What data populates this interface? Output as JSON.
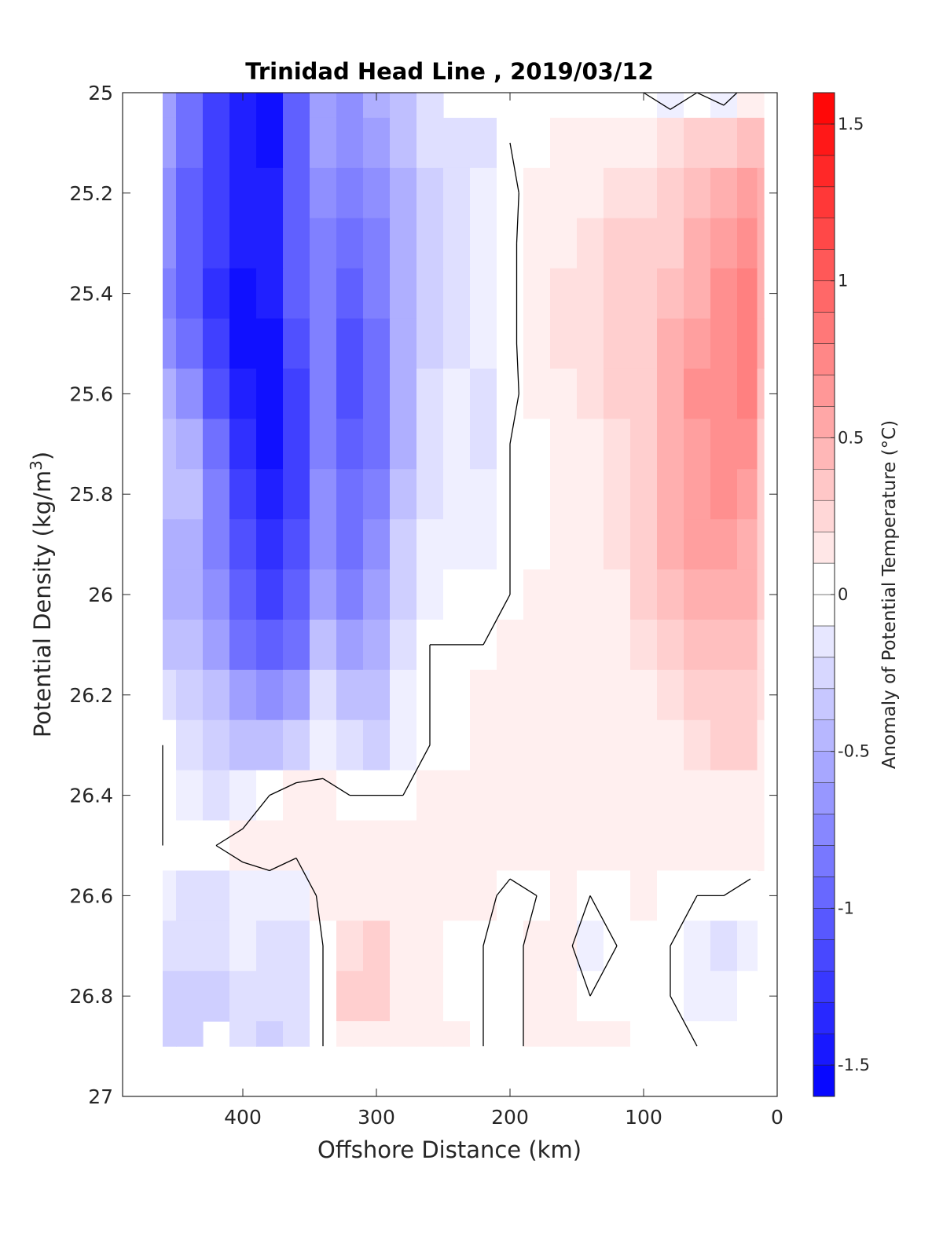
{
  "chart_data": {
    "type": "heatmap",
    "title": "Trinidad Head Line , 2019/03/12",
    "xlabel": "Offshore Distance (km)",
    "ylabel_main": "Potential Density (kg/m",
    "ylabel_sup": "3",
    "ylabel_close": ")",
    "colorbar_label": "Anomaly of Potential Temperature (°C)",
    "x_reversed": true,
    "xlim": [
      0,
      490
    ],
    "ylim": [
      25,
      27
    ],
    "y_reversed": true,
    "xticks": [
      400,
      300,
      200,
      100,
      0
    ],
    "xtick_labels": [
      "400",
      "300",
      "200",
      "100",
      "0"
    ],
    "yticks": [
      25,
      25.2,
      25.4,
      25.6,
      25.8,
      26,
      26.2,
      26.4,
      26.6,
      26.8,
      27
    ],
    "ytick_labels": [
      "25",
      "25.2",
      "25.4",
      "25.6",
      "25.8",
      "26",
      "26.2",
      "26.4",
      "26.6",
      "26.8",
      "27"
    ],
    "colorbar": {
      "min": -1.6,
      "max": 1.6,
      "step": 0.1,
      "ticks": [
        -1.5,
        -1,
        -0.5,
        0,
        0.5,
        1,
        1.5
      ],
      "tick_labels": [
        "-1.5",
        "-1",
        "-0.5",
        "0",
        "0.5",
        "1",
        "1.5"
      ],
      "cold_color": "#0000ff",
      "warm_color": "#ff0000",
      "neutral_color": "#ffffff"
    },
    "x_grid_km": [
      460,
      440,
      420,
      400,
      380,
      360,
      340,
      320,
      300,
      280,
      260,
      240,
      220,
      200,
      180,
      160,
      140,
      120,
      100,
      80,
      60,
      40,
      20,
      10
    ],
    "y_grid_density": [
      25.0,
      25.1,
      25.2,
      25.3,
      25.4,
      25.5,
      25.6,
      25.7,
      25.8,
      25.9,
      26.0,
      26.1,
      26.2,
      26.3,
      26.4,
      26.5,
      26.6,
      26.7,
      26.8,
      26.9
    ],
    "anomaly_values": [
      [
        -0.6,
        -0.9,
        -1.2,
        -1.4,
        -1.55,
        -1.0,
        -0.6,
        -0.7,
        -0.5,
        -0.4,
        -0.2,
        null,
        null,
        null,
        null,
        null,
        null,
        null,
        0.0,
        -0.1,
        0.0,
        -0.1,
        0.1,
        0.1
      ],
      [
        -0.6,
        -0.9,
        -1.2,
        -1.4,
        -1.5,
        -1.0,
        -0.6,
        -0.7,
        -0.6,
        -0.4,
        -0.25,
        -0.2,
        -0.2,
        0.0,
        0.0,
        0.05,
        0.05,
        0.1,
        0.15,
        0.2,
        0.25,
        0.3,
        0.4,
        0.4
      ],
      [
        -0.7,
        -1.0,
        -1.2,
        -1.4,
        -1.4,
        -1.0,
        -0.7,
        -0.8,
        -0.7,
        -0.5,
        -0.3,
        -0.2,
        -0.15,
        -0.05,
        0.1,
        0.1,
        0.15,
        0.2,
        0.2,
        0.3,
        0.4,
        0.5,
        0.6,
        0.5
      ],
      [
        -0.7,
        -1.0,
        -1.2,
        -1.45,
        -1.4,
        -1.0,
        -0.8,
        -0.9,
        -0.8,
        -0.5,
        -0.3,
        -0.2,
        -0.15,
        -0.05,
        0.15,
        0.15,
        0.2,
        0.25,
        0.25,
        0.35,
        0.5,
        0.6,
        0.7,
        0.5
      ],
      [
        -0.8,
        -1.0,
        -1.3,
        -1.5,
        -1.4,
        -1.0,
        -0.8,
        -1.0,
        -0.8,
        -0.5,
        -0.3,
        -0.2,
        -0.15,
        -0.05,
        0.15,
        0.2,
        0.2,
        0.3,
        0.3,
        0.4,
        0.5,
        0.65,
        0.75,
        0.5
      ],
      [
        -0.7,
        -0.9,
        -1.2,
        -1.5,
        -1.5,
        -1.1,
        -0.8,
        -1.1,
        -0.9,
        -0.5,
        -0.3,
        -0.2,
        -0.15,
        -0.05,
        0.15,
        0.2,
        0.2,
        0.3,
        0.3,
        0.45,
        0.6,
        0.7,
        0.8,
        0.5
      ],
      [
        -0.5,
        -0.7,
        -1.1,
        -1.4,
        -1.5,
        -1.2,
        -0.8,
        -1.1,
        -0.9,
        -0.5,
        -0.2,
        -0.15,
        -0.2,
        -0.05,
        0.1,
        0.15,
        0.2,
        0.25,
        0.3,
        0.45,
        0.65,
        0.7,
        0.75,
        0.4
      ],
      [
        -0.4,
        -0.5,
        -0.9,
        -1.3,
        -1.5,
        -1.2,
        -0.8,
        -1.0,
        -0.9,
        -0.5,
        -0.2,
        -0.1,
        -0.2,
        0.0,
        0.0,
        0.1,
        0.15,
        0.2,
        0.3,
        0.45,
        0.6,
        0.7,
        0.65,
        0.3
      ],
      [
        -0.4,
        -0.4,
        -0.8,
        -1.2,
        -1.4,
        -1.2,
        -0.7,
        -0.9,
        -0.8,
        -0.4,
        -0.2,
        -0.1,
        -0.15,
        0.0,
        0.0,
        0.1,
        0.1,
        0.2,
        0.3,
        0.45,
        0.6,
        0.7,
        0.6,
        0.3
      ],
      [
        -0.5,
        -0.5,
        -0.8,
        -1.1,
        -1.3,
        -1.1,
        -0.7,
        -0.9,
        -0.7,
        -0.3,
        -0.1,
        -0.1,
        -0.1,
        0.0,
        0.0,
        0.05,
        0.1,
        0.2,
        0.3,
        0.45,
        0.55,
        0.6,
        0.5,
        0.3
      ],
      [
        -0.5,
        -0.5,
        -0.7,
        -1.0,
        -1.2,
        -1.0,
        -0.6,
        -0.8,
        -0.6,
        -0.3,
        -0.1,
        -0.05,
        -0.05,
        0.0,
        0.05,
        0.1,
        0.1,
        0.15,
        0.25,
        0.4,
        0.5,
        0.5,
        0.45,
        0.25
      ],
      [
        -0.4,
        -0.4,
        -0.6,
        -0.9,
        -1.0,
        -0.9,
        -0.4,
        -0.6,
        -0.5,
        -0.2,
        0.0,
        0.0,
        0.0,
        0.05,
        0.1,
        0.1,
        0.1,
        0.15,
        0.2,
        0.3,
        0.4,
        0.4,
        0.4,
        0.2
      ],
      [
        -0.2,
        -0.3,
        -0.4,
        -0.6,
        -0.7,
        -0.6,
        -0.2,
        -0.4,
        -0.4,
        -0.1,
        0.0,
        0.0,
        0.05,
        0.05,
        0.1,
        0.1,
        0.1,
        0.1,
        0.15,
        0.2,
        0.3,
        0.35,
        0.3,
        0.2
      ],
      [
        0.0,
        -0.2,
        -0.3,
        -0.4,
        -0.4,
        -0.3,
        -0.1,
        -0.2,
        -0.3,
        -0.1,
        0.0,
        0.0,
        0.05,
        0.1,
        0.1,
        0.1,
        0.15,
        0.1,
        0.1,
        0.15,
        0.2,
        0.25,
        0.25,
        0.15
      ],
      [
        0.0,
        -0.1,
        -0.2,
        -0.1,
        0.0,
        0.1,
        0.05,
        0.0,
        0.0,
        0.0,
        0.05,
        0.1,
        0.1,
        0.1,
        0.15,
        0.1,
        0.1,
        0.1,
        0.1,
        0.1,
        0.15,
        0.15,
        0.15,
        0.1
      ],
      [
        0.0,
        -0.05,
        0.0,
        0.05,
        0.1,
        0.05,
        0.1,
        0.15,
        0.1,
        0.05,
        0.05,
        0.1,
        0.1,
        0.1,
        0.1,
        0.05,
        0.05,
        0.05,
        0.05,
        0.05,
        0.1,
        0.1,
        0.1,
        0.05
      ],
      [
        -0.1,
        -0.2,
        -0.2,
        -0.1,
        -0.1,
        -0.15,
        0.05,
        0.15,
        0.15,
        0.1,
        0.05,
        0.05,
        0.05,
        -0.05,
        0.0,
        0.05,
        0.0,
        0.0,
        0.05,
        0.0,
        0.0,
        0.0,
        -0.05,
        null
      ],
      [
        -0.2,
        -0.25,
        -0.2,
        -0.15,
        -0.2,
        -0.25,
        0.0,
        0.2,
        0.25,
        0.15,
        0.05,
        0.0,
        0.0,
        -0.05,
        0.05,
        0.05,
        -0.1,
        0.0,
        0.0,
        0.0,
        -0.1,
        -0.2,
        -0.1,
        null
      ],
      [
        -0.3,
        -0.35,
        -0.3,
        -0.2,
        -0.25,
        -0.2,
        0.0,
        0.25,
        0.25,
        0.15,
        0.05,
        0.0,
        0.0,
        -0.05,
        0.05,
        0.05,
        0.0,
        0.0,
        0.0,
        0.0,
        -0.1,
        -0.15,
        -0.05,
        null
      ],
      [
        -0.3,
        -0.3,
        null,
        -0.2,
        -0.3,
        -0.2,
        0.0,
        0.15,
        0.15,
        0.1,
        0.05,
        0.05,
        0.0,
        -0.05,
        0.05,
        0.05,
        0.1,
        0.05,
        0.0,
        0.0,
        0.0,
        -0.05,
        0.0,
        null
      ]
    ]
  }
}
